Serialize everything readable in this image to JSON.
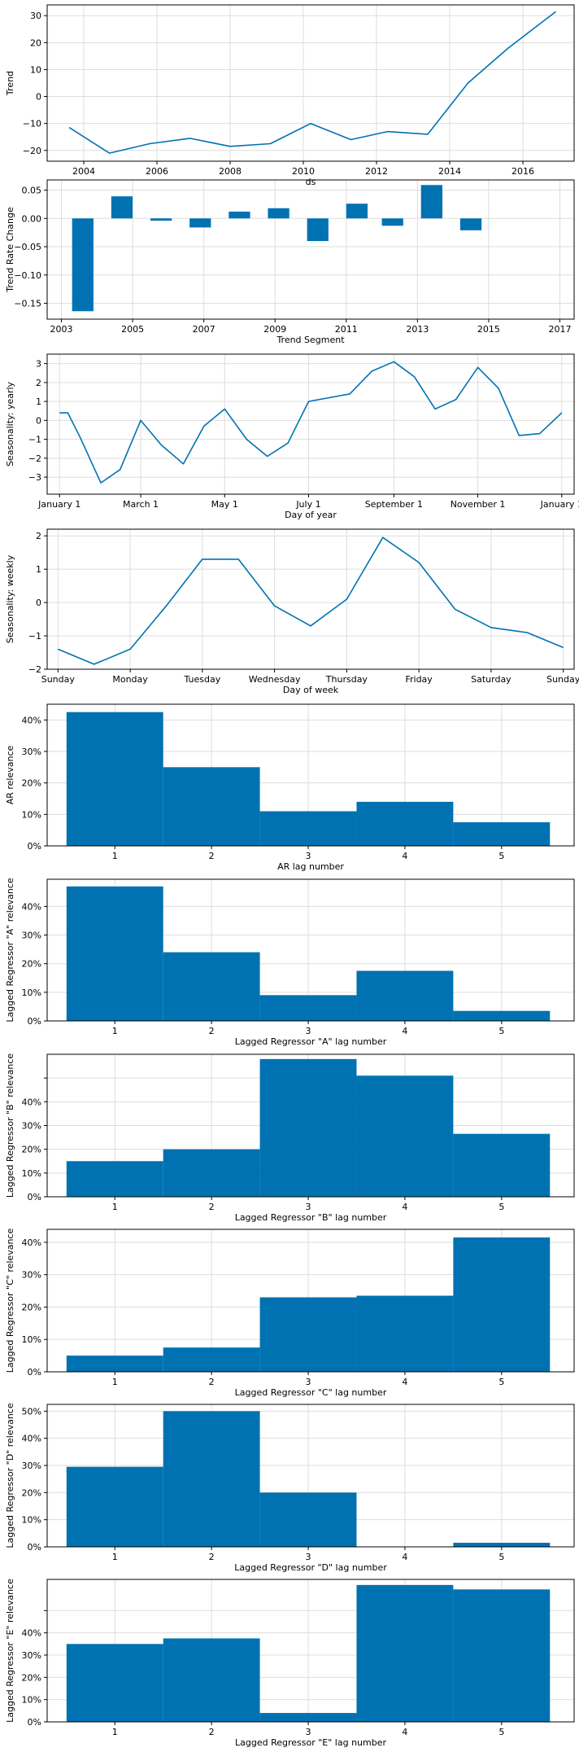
{
  "colors": {
    "series": "#0072b2",
    "grid": "#dddddd",
    "axis": "#000000"
  },
  "chart_data": [
    {
      "type": "line",
      "xlabel": "ds",
      "ylabel": "Trend",
      "x": [
        2003.6,
        2004.7,
        2005.8,
        2006.9,
        2008.0,
        2009.1,
        2010.2,
        2011.3,
        2012.3,
        2013.4,
        2014.5,
        2015.6,
        2016.9
      ],
      "y": [
        -11.5,
        -21,
        -17.5,
        -15.5,
        -18.5,
        -17.5,
        -10,
        -16,
        -13,
        -14,
        5,
        18,
        31.5
      ],
      "xlim": [
        2003.0,
        2017.4
      ],
      "ylim": [
        -24,
        34
      ],
      "xticks": [
        2004,
        2006,
        2008,
        2010,
        2012,
        2014,
        2016
      ],
      "xticklabels": [
        "2004",
        "2006",
        "2008",
        "2010",
        "2012",
        "2014",
        "2016"
      ],
      "yticks": [
        -20,
        -10,
        0,
        10,
        20,
        30
      ],
      "yticklabels": [
        "−20",
        "−10",
        "0",
        "10",
        "20",
        "30"
      ],
      "grid": true
    },
    {
      "type": "bar",
      "xlabel": "Trend Segment",
      "ylabel": "Trend Rate Change",
      "x": [
        2003.6,
        2004.7,
        2005.8,
        2006.9,
        2008.0,
        2009.1,
        2010.2,
        2011.3,
        2012.3,
        2013.4,
        2014.5
      ],
      "values": [
        -0.164,
        0.039,
        -0.004,
        -0.016,
        0.012,
        0.018,
        -0.04,
        0.026,
        -0.013,
        0.059,
        -0.021
      ],
      "bar_width": 0.6,
      "xlim": [
        2002.6,
        2017.4
      ],
      "ylim": [
        -0.178,
        0.068
      ],
      "xticks": [
        2003,
        2005,
        2007,
        2009,
        2011,
        2013,
        2015,
        2017
      ],
      "xticklabels": [
        "2003",
        "2005",
        "2007",
        "2009",
        "2011",
        "2013",
        "2015",
        "2017"
      ],
      "yticks": [
        -0.15,
        -0.1,
        -0.05,
        0.0,
        0.05
      ],
      "yticklabels": [
        "−0.15",
        "−0.10",
        "−0.05",
        "0.00",
        "0.05"
      ],
      "grid": true
    },
    {
      "type": "line",
      "xlabel": "Day of year",
      "ylabel": "Seasonality: yearly",
      "x": [
        0,
        6,
        15,
        30,
        44,
        59,
        74,
        90,
        105,
        120,
        136,
        151,
        166,
        181,
        196,
        211,
        227,
        243,
        258,
        273,
        288,
        304,
        319,
        334,
        349,
        365
      ],
      "y": [
        0.4,
        0.4,
        -0.9,
        -3.3,
        -2.6,
        0.0,
        -1.3,
        -2.3,
        -0.3,
        0.6,
        -1.0,
        -1.9,
        -1.2,
        1.0,
        1.2,
        1.4,
        2.6,
        3.1,
        2.3,
        0.6,
        1.1,
        2.8,
        1.7,
        -0.8,
        -0.7,
        0.4
      ],
      "xlim": [
        -9,
        374
      ],
      "ylim": [
        -3.9,
        3.5
      ],
      "xticks": [
        0,
        59,
        120,
        181,
        243,
        304,
        365
      ],
      "xticklabels": [
        "January 1",
        "March 1",
        "May 1",
        "July 1",
        "September 1",
        "November 1",
        "January 1"
      ],
      "yticks": [
        -3,
        -2,
        -1,
        0,
        1,
        2,
        3
      ],
      "yticklabels": [
        "−3",
        "−2",
        "−1",
        "0",
        "1",
        "2",
        "3"
      ],
      "grid": true
    },
    {
      "type": "line",
      "xlabel": "Day of week",
      "ylabel": "Seasonality: weekly",
      "x": [
        0,
        0.5,
        1,
        1.5,
        2,
        2.5,
        3,
        3.5,
        4,
        4.5,
        5,
        5.5,
        6,
        6.5,
        7
      ],
      "y": [
        -1.4,
        -1.85,
        -1.4,
        -0.1,
        1.3,
        1.3,
        -0.1,
        -0.7,
        0.1,
        1.95,
        1.2,
        -0.2,
        -0.75,
        -0.9,
        -1.35
      ],
      "xlim": [
        -0.15,
        7.15
      ],
      "ylim": [
        -2.0,
        2.2
      ],
      "xticks": [
        0,
        1,
        2,
        3,
        4,
        5,
        6,
        7
      ],
      "xticklabels": [
        "Sunday",
        "Monday",
        "Tuesday",
        "Wednesday",
        "Thursday",
        "Friday",
        "Saturday",
        "Sunday"
      ],
      "yticks": [
        -2,
        -1,
        0,
        1,
        2
      ],
      "yticklabels": [
        "−2",
        "−1",
        "0",
        "1",
        "2"
      ],
      "grid": true
    },
    {
      "type": "bar",
      "xlabel": "AR lag number",
      "ylabel": "AR relevance",
      "categories": [
        1,
        2,
        3,
        4,
        5
      ],
      "values": [
        0.425,
        0.25,
        0.11,
        0.14,
        0.075
      ],
      "bar_width": 1.0,
      "xlim": [
        0.3,
        5.75
      ],
      "ylim": [
        0,
        0.45
      ],
      "yticks": [
        0,
        0.1,
        0.2,
        0.3,
        0.4
      ],
      "yticklabels": [
        "0%",
        "10%",
        "20%",
        "30%",
        "40%"
      ],
      "grid": true
    },
    {
      "type": "bar",
      "xlabel": "Lagged Regressor \"A\" lag number",
      "ylabel": "Lagged Regressor \"A\" relevance",
      "categories": [
        1,
        2,
        3,
        4,
        5
      ],
      "values": [
        0.47,
        0.24,
        0.09,
        0.175,
        0.035
      ],
      "bar_width": 1.0,
      "xlim": [
        0.3,
        5.75
      ],
      "ylim": [
        0,
        0.495
      ],
      "yticks": [
        0,
        0.1,
        0.2,
        0.3,
        0.4
      ],
      "yticklabels": [
        "0%",
        "10%",
        "20%",
        "30%",
        "40%"
      ],
      "grid": true
    },
    {
      "type": "bar",
      "xlabel": "Lagged Regressor \"B\" lag number",
      "ylabel": "Lagged Regressor \"B\" relevance",
      "categories": [
        1,
        2,
        3,
        4,
        5
      ],
      "values": [
        0.15,
        0.2,
        0.58,
        0.51,
        0.265
      ],
      "bar_width": 1.0,
      "xlim": [
        0.3,
        5.75
      ],
      "ylim": [
        0,
        0.6
      ],
      "yticks": [
        0,
        0.1,
        0.2,
        0.3,
        0.4,
        0.5
      ],
      "yticklabels": [
        "0%",
        "10%",
        "20%",
        "30%",
        "40%",
        ""
      ],
      "grid": true
    },
    {
      "type": "bar",
      "xlabel": "Lagged Regressor \"C\" lag number",
      "ylabel": "Lagged Regressor \"C\" relevance",
      "categories": [
        1,
        2,
        3,
        4,
        5
      ],
      "values": [
        0.05,
        0.075,
        0.23,
        0.235,
        0.415
      ],
      "bar_width": 1.0,
      "xlim": [
        0.3,
        5.75
      ],
      "ylim": [
        0,
        0.44
      ],
      "yticks": [
        0,
        0.1,
        0.2,
        0.3,
        0.4
      ],
      "yticklabels": [
        "0%",
        "10%",
        "20%",
        "30%",
        "40%"
      ],
      "grid": true
    },
    {
      "type": "bar",
      "xlabel": "Lagged Regressor \"D\" lag number",
      "ylabel": "Lagged Regressor \"D\" relevance",
      "categories": [
        1,
        2,
        3,
        4,
        5
      ],
      "values": [
        0.295,
        0.5,
        0.2,
        0.0,
        0.015
      ],
      "bar_width": 1.0,
      "xlim": [
        0.3,
        5.75
      ],
      "ylim": [
        0,
        0.525
      ],
      "yticks": [
        0,
        0.1,
        0.2,
        0.3,
        0.4,
        0.5
      ],
      "yticklabels": [
        "0%",
        "10%",
        "20%",
        "30%",
        "40%",
        "50%"
      ],
      "grid": true
    },
    {
      "type": "bar",
      "xlabel": "Lagged Regressor \"E\" lag number",
      "ylabel": "Lagged Regressor \"E\" relevance",
      "categories": [
        1,
        2,
        3,
        4,
        5
      ],
      "values": [
        0.35,
        0.375,
        0.04,
        0.615,
        0.595
      ],
      "bar_width": 1.0,
      "xlim": [
        0.3,
        5.75
      ],
      "ylim": [
        0,
        0.64
      ],
      "yticks": [
        0,
        0.1,
        0.2,
        0.3,
        0.4,
        0.5
      ],
      "yticklabels": [
        "0%",
        "10%",
        "20%",
        "30%",
        "40%",
        ""
      ],
      "grid": true
    }
  ]
}
